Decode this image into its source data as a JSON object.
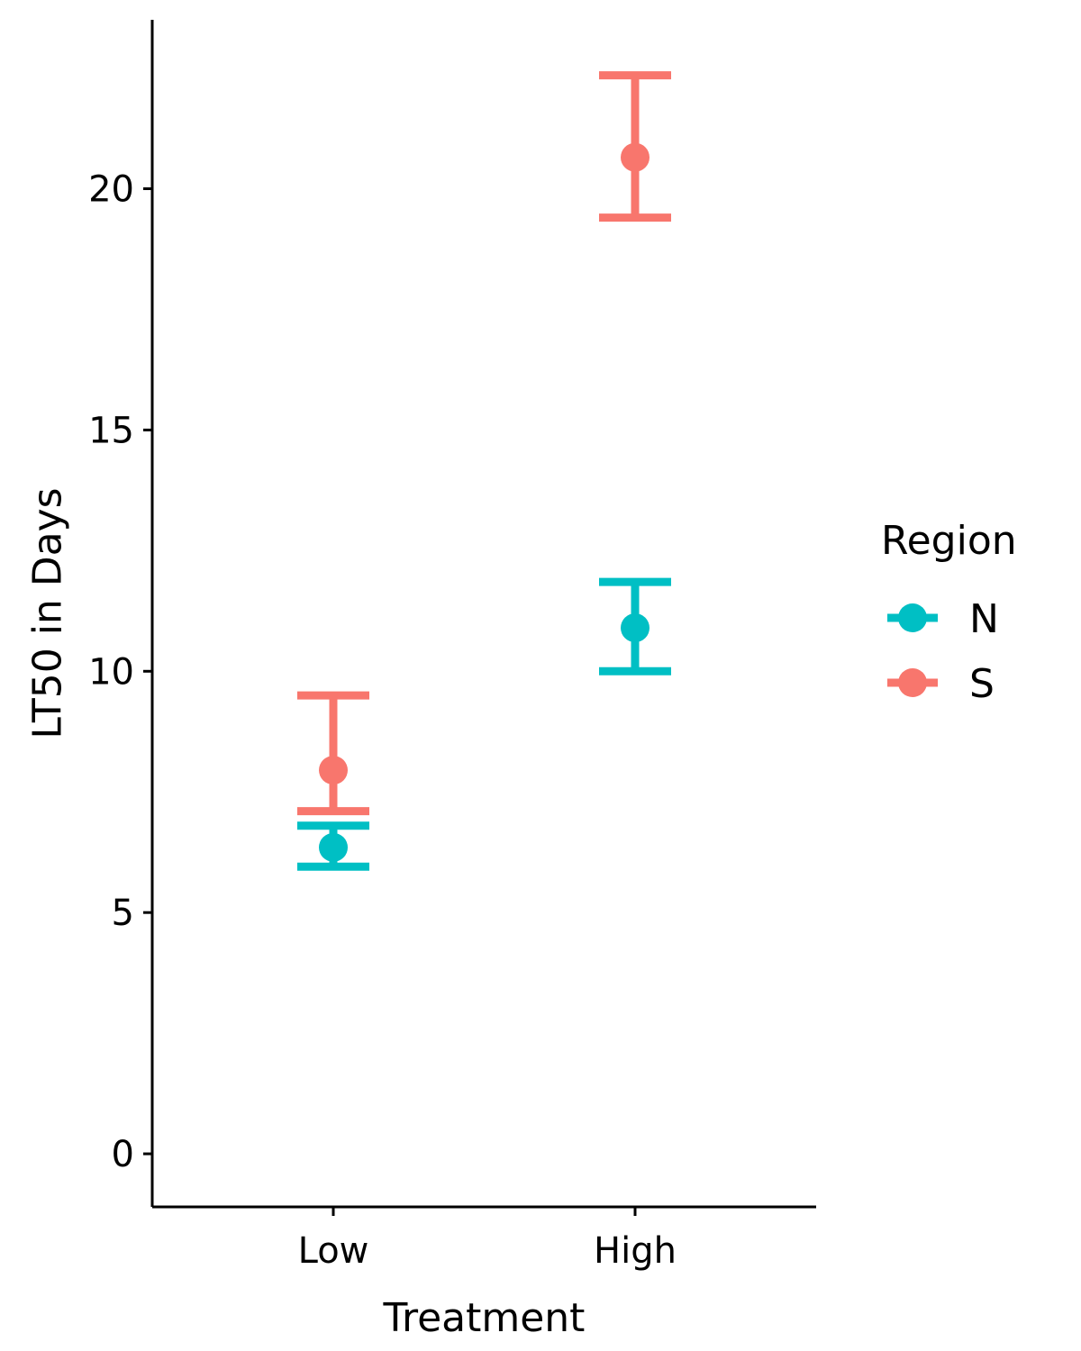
{
  "chart_data": {
    "type": "scatter",
    "subtype": "point-errorbar",
    "title": "",
    "xlabel": "Treatment",
    "ylabel": "LT50 in Days",
    "categories": [
      "Low",
      "High"
    ],
    "ylim": [
      -1.1,
      23.5
    ],
    "yticks": [
      0,
      5,
      10,
      15,
      20
    ],
    "grid": false,
    "legend": {
      "title": "Region",
      "position": "right"
    },
    "series": [
      {
        "name": "N",
        "color": "#00BFC4",
        "values": [
          6.35,
          10.9
        ],
        "lower": [
          5.95,
          10.0
        ],
        "upper": [
          6.8,
          11.85
        ]
      },
      {
        "name": "S",
        "color": "#F8766D",
        "values": [
          7.95,
          20.65
        ],
        "lower": [
          7.1,
          19.4
        ],
        "upper": [
          9.5,
          22.35
        ]
      }
    ]
  }
}
